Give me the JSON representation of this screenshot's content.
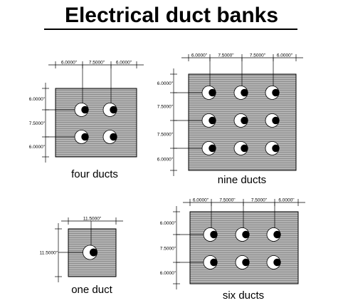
{
  "title": "Electrical duct banks",
  "colors": {
    "fill": "#a9a9a9",
    "line": "#000000",
    "background": "#ffffff",
    "duct": "#ffffff"
  },
  "banks": {
    "four": {
      "caption": "four ducts",
      "top_dims": [
        "6.0000\"",
        "7.5000\"",
        "6.0000\""
      ],
      "side_dims": [
        "6.0000\"",
        "7.5000\"",
        "6.0000\""
      ],
      "rows": 2,
      "cols": 2
    },
    "nine": {
      "caption": "nine ducts",
      "top_dims": [
        "6.0000\"",
        "7.5000\"",
        "7.5000\"",
        "6.0000\""
      ],
      "side_dims": [
        "6.0000\"",
        "7.5000\"",
        "7.5000\"",
        "6.0000\""
      ],
      "rows": 3,
      "cols": 3
    },
    "one": {
      "caption": "one duct",
      "top_dims": [
        "11.5000\""
      ],
      "side_dims": [
        "11.5000\""
      ],
      "rows": 1,
      "cols": 1
    },
    "six": {
      "caption": "six ducts",
      "top_dims": [
        "6.0000\"",
        "7.5000\"",
        "7.5000\"",
        "6.0000\""
      ],
      "side_dims": [
        "6.0000\"",
        "7.5000\"",
        "6.0000\""
      ],
      "rows": 2,
      "cols": 3
    }
  }
}
